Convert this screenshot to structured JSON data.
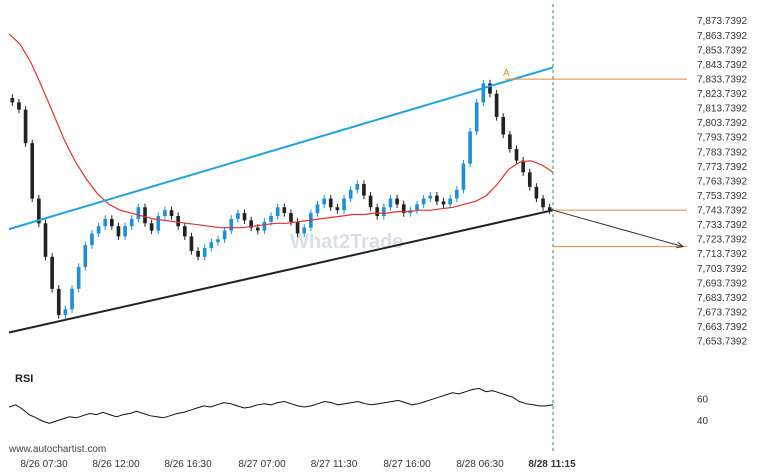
{
  "watermark": "www.autochartist.com",
  "brand_logo": "What2Trade",
  "chart_data": [
    {
      "type": "candlestick",
      "title": "",
      "ylim": [
        7648,
        7878
      ],
      "y_ticks": [
        "7,873.7392",
        "7,863.7392",
        "7,853.7392",
        "7,843.7392",
        "7,833.7392",
        "7,823.7392",
        "7,813.7392",
        "7,803.7392",
        "7,793.7392",
        "7,783.7392",
        "7,773.7392",
        "7,763.7392",
        "7,753.7392",
        "7,743.7392",
        "7,733.7392",
        "7,723.7392",
        "7,713.7392",
        "7,703.7392",
        "7,693.7392",
        "7,683.7392",
        "7,673.7392",
        "7,663.7392",
        "7,653.7392"
      ],
      "x_ticks": [
        "8/26 07:30",
        "8/26 12:00",
        "8/26 16:30",
        "8/27 07:00",
        "8/27 11:30",
        "8/27 16:00",
        "8/28 06:30",
        "8/28 11:15"
      ],
      "close_series": [
        7818,
        7813,
        7790,
        7752,
        7735,
        7712,
        7690,
        7672,
        7676,
        7690,
        7705,
        7720,
        7728,
        7733,
        7738,
        7733,
        7726,
        7733,
        7738,
        7746,
        7735,
        7730,
        7740,
        7744,
        7740,
        7733,
        7726,
        7716,
        7712,
        7718,
        7722,
        7724,
        7730,
        7738,
        7742,
        7737,
        7732,
        7730,
        7736,
        7740,
        7746,
        7742,
        7736,
        7728,
        7732,
        7742,
        7748,
        7752,
        7746,
        7744,
        7752,
        7758,
        7762,
        7754,
        7746,
        7740,
        7746,
        7752,
        7748,
        7742,
        7744,
        7748,
        7752,
        7754,
        7750,
        7748,
        7752,
        7758,
        7776,
        7798,
        7818,
        7831,
        7824,
        7808,
        7796,
        7786,
        7778,
        7770,
        7760,
        7752,
        7746,
        7744
      ],
      "moving_average": [
        7865,
        7858,
        7845,
        7828,
        7810,
        7792,
        7777,
        7765,
        7755,
        7748,
        7744,
        7742,
        7740,
        7738,
        7737,
        7736,
        7735,
        7734,
        7733,
        7732,
        7732,
        7732,
        7733,
        7734,
        7735,
        7735,
        7736,
        7737,
        7738,
        7739,
        7740,
        7741,
        7741,
        7742,
        7742,
        7743,
        7743,
        7744,
        7744,
        7745,
        7746,
        7748,
        7750,
        7754,
        7762,
        7772,
        7777,
        7778,
        7775,
        7770
      ],
      "channel_upper": {
        "start": [
          0,
          7731
        ],
        "end": [
          1,
          7842
        ]
      },
      "channel_lower": {
        "start": [
          0,
          7660
        ],
        "end": [
          1,
          7744
        ]
      },
      "marker_label": "A",
      "level_high": 7834,
      "level_current": 7744,
      "level_target": 7719,
      "colors": {
        "up": "#1f8fd6",
        "down": "#222222",
        "ma": "#e0322e",
        "upper_channel": "#1fa2e0",
        "lower_channel": "#222222",
        "levels": "#e58a3a",
        "projection": "#333333",
        "time_marker": "#2e8b57"
      }
    },
    {
      "type": "line",
      "title": "RSI",
      "ylim": [
        30,
        75
      ],
      "y_ticks": [
        "60",
        "40"
      ],
      "values": [
        53,
        55,
        51,
        46,
        43,
        40,
        38,
        40,
        42,
        44,
        43,
        45,
        47,
        46,
        48,
        46,
        44,
        46,
        47,
        49,
        47,
        45,
        44,
        43,
        45,
        47,
        48,
        50,
        52,
        54,
        53,
        55,
        57,
        56,
        54,
        52,
        53,
        55,
        56,
        55,
        57,
        58,
        56,
        54,
        53,
        54,
        56,
        58,
        57,
        55,
        56,
        57,
        58,
        56,
        55,
        56,
        57,
        58,
        59,
        57,
        55,
        56,
        58,
        60,
        62,
        64,
        66,
        65,
        67,
        69,
        70,
        67,
        68,
        66,
        64,
        62,
        58,
        56,
        55,
        54,
        54,
        55
      ]
    }
  ]
}
